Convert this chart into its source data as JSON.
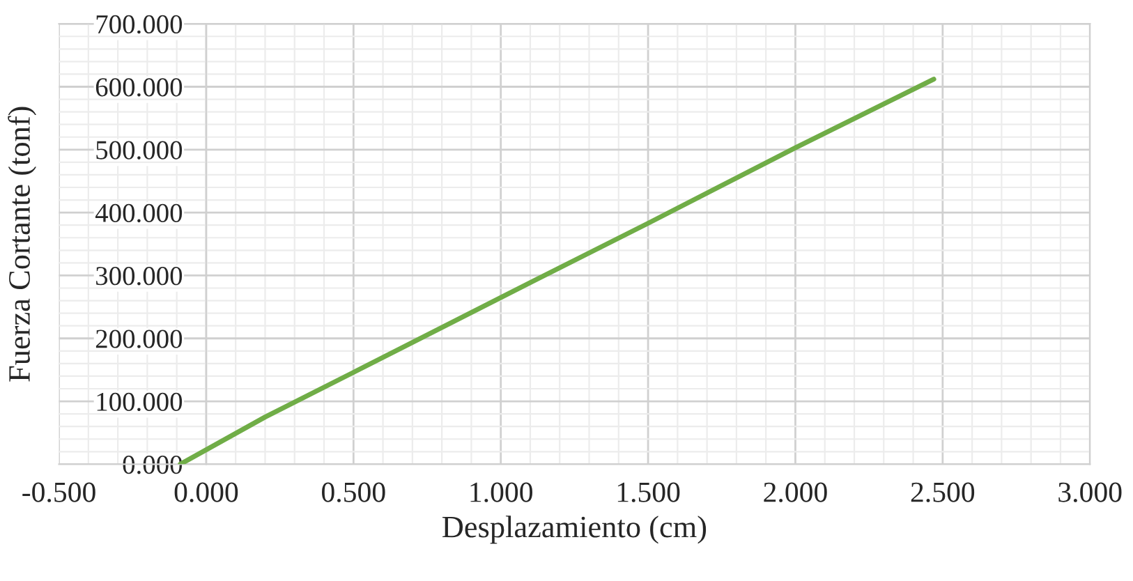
{
  "chart_data": {
    "type": "line",
    "xlabel": "Desplazamiento (cm)",
    "ylabel": "Fuerza Cortante (tonf)",
    "x": [
      -0.088,
      0.2,
      0.5,
      1.0,
      1.5,
      2.0,
      2.47
    ],
    "series": [
      {
        "color": "#70ad47",
        "values": [
          0,
          75,
          146,
          265,
          383,
          503,
          612
        ]
      }
    ],
    "xlim": [
      -0.5,
      3.0
    ],
    "ylim": [
      0,
      700
    ],
    "xticks": [
      {
        "value": -0.5,
        "label": "-0.500"
      },
      {
        "value": 0,
        "label": "0.000"
      },
      {
        "value": 0.5,
        "label": "0.500"
      },
      {
        "value": 1.0,
        "label": "1.000"
      },
      {
        "value": 1.5,
        "label": "1.500"
      },
      {
        "value": 2.0,
        "label": "2.000"
      },
      {
        "value": 2.5,
        "label": "2.500"
      },
      {
        "value": 3.0,
        "label": "3.000"
      }
    ],
    "yticks": [
      {
        "value": 0,
        "label": "0.000"
      },
      {
        "value": 100,
        "label": "100.000"
      },
      {
        "value": 200,
        "label": "200.000"
      },
      {
        "value": 300,
        "label": "300.000"
      },
      {
        "value": 400,
        "label": "400.000"
      },
      {
        "value": 500,
        "label": "500.000"
      },
      {
        "value": 600,
        "label": "600.000"
      },
      {
        "value": 700,
        "label": "700.000"
      }
    ],
    "grid": true,
    "marker": "none",
    "line_style": "solid",
    "legend": false
  }
}
